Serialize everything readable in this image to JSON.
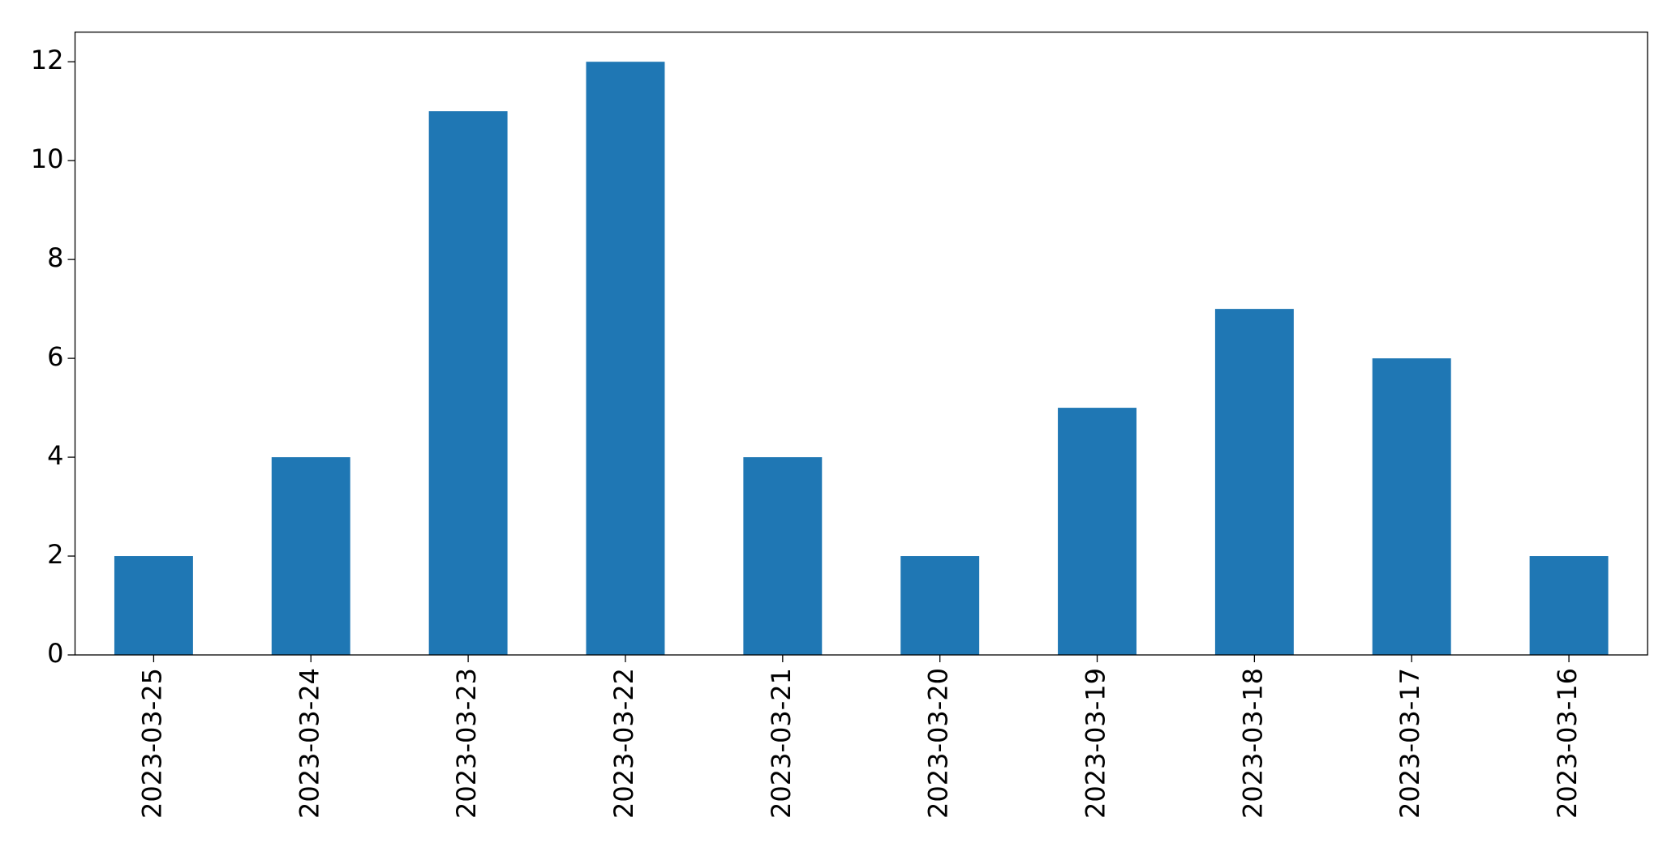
{
  "chart_data": {
    "type": "bar",
    "categories": [
      "2023-03-25",
      "2023-03-24",
      "2023-03-23",
      "2023-03-22",
      "2023-03-21",
      "2023-03-20",
      "2023-03-19",
      "2023-03-18",
      "2023-03-17",
      "2023-03-16"
    ],
    "values": [
      2,
      4,
      11,
      12,
      4,
      2,
      5,
      7,
      6,
      2
    ],
    "color": "#1f77b4",
    "ylim": [
      0,
      12.6
    ],
    "yticks": [
      0,
      2,
      4,
      6,
      8,
      10,
      12
    ],
    "grid": false
  }
}
